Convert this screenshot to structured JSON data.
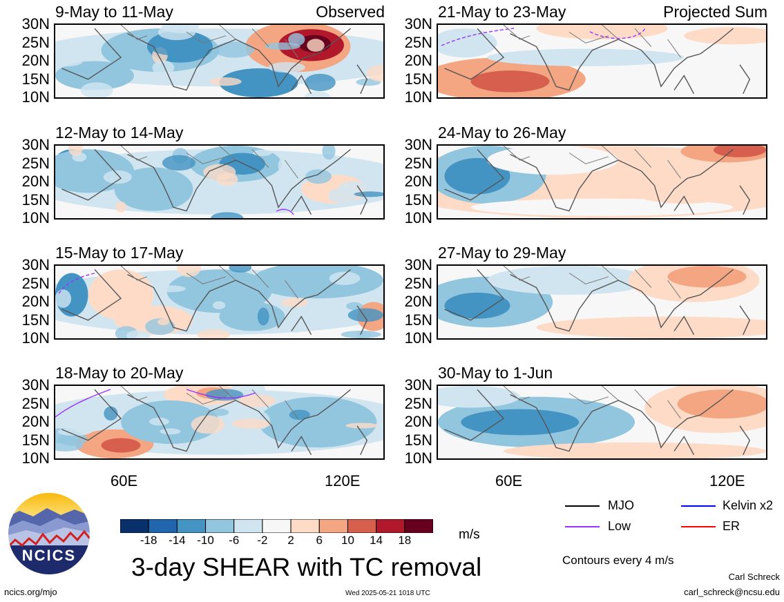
{
  "panels": [
    {
      "title": "9-May to 11-May",
      "tag": "Observed",
      "col": 0,
      "row": 0,
      "seed": 1,
      "theme": "obs1"
    },
    {
      "title": "12-May to 14-May",
      "tag": "",
      "col": 0,
      "row": 1,
      "seed": 2,
      "theme": "obs2"
    },
    {
      "title": "15-May to 17-May",
      "tag": "",
      "col": 0,
      "row": 2,
      "seed": 3,
      "theme": "obs3"
    },
    {
      "title": "18-May to 20-May",
      "tag": "",
      "col": 0,
      "row": 3,
      "seed": 4,
      "theme": "obs4"
    },
    {
      "title": "21-May to 23-May",
      "tag": "Projected Sum",
      "col": 1,
      "row": 0,
      "seed": 5,
      "theme": "proj1"
    },
    {
      "title": "24-May to 26-May",
      "tag": "",
      "col": 1,
      "row": 1,
      "seed": 6,
      "theme": "proj2"
    },
    {
      "title": "27-May to 29-May",
      "tag": "",
      "col": 1,
      "row": 2,
      "seed": 7,
      "theme": "proj3"
    },
    {
      "title": "30-May to 1-Jun",
      "tag": "",
      "col": 1,
      "row": 3,
      "seed": 8,
      "theme": "proj4"
    }
  ],
  "lat_labels": [
    "30N",
    "25N",
    "20N",
    "15N",
    "10N"
  ],
  "lon_labels": [
    "60E",
    "120E"
  ],
  "colorbar": {
    "colors": [
      "#08306b",
      "#2166ac",
      "#4393c3",
      "#92c5de",
      "#d1e5f0",
      "#f7f7f7",
      "#fddbc7",
      "#f4a582",
      "#d6604d",
      "#b2182b",
      "#67001f"
    ],
    "labels": [
      "-18",
      "-14",
      "-10",
      "-6",
      "-2",
      "2",
      "6",
      "10",
      "14",
      "18"
    ],
    "units": "m/s"
  },
  "main_title": "3-day SHEAR with TC removal",
  "legend": [
    {
      "label": "MJO",
      "color": "#000000"
    },
    {
      "label": "Kelvin x2",
      "color": "#0000ff"
    },
    {
      "label": "Low",
      "color": "#9b30ff"
    },
    {
      "label": "ER",
      "color": "#ff0000"
    }
  ],
  "contours_note": "Contours every 4 m/s",
  "logo_text": "NCICS",
  "footer": {
    "site": "ncics.org/mjo",
    "timestamp": "Wed 2025-05-21 1018 UTC",
    "author": "Carl Schreck",
    "email": "carl_schreck@ncsu.edu"
  }
}
